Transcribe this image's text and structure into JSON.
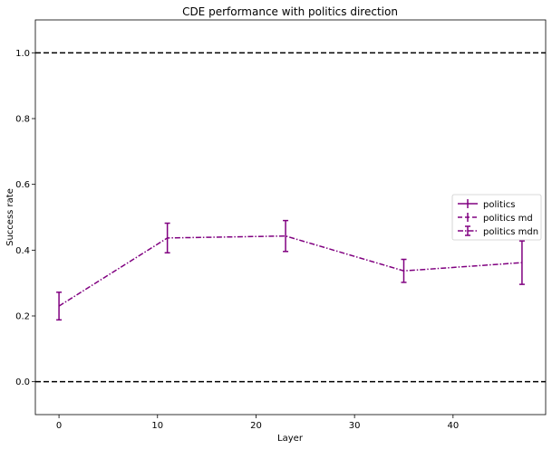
{
  "chart_data": {
    "type": "line",
    "title": "CDE performance with politics direction",
    "xlabel": "Layer",
    "ylabel": "Success rate",
    "xlim": [
      -2.4,
      49.4
    ],
    "ylim": [
      -0.1,
      1.1
    ],
    "xticks": [
      0,
      10,
      20,
      30,
      40
    ],
    "yticks": [
      0.0,
      0.2,
      0.4,
      0.6,
      0.8,
      1.0
    ],
    "xtick_labels": [
      "0",
      "10",
      "20",
      "30",
      "40"
    ],
    "ytick_labels": [
      "0.0",
      "0.2",
      "0.4",
      "0.6",
      "0.8",
      "1.0"
    ],
    "grid": false,
    "legend_position": "center-right",
    "color": "#800080",
    "reference_lines": [
      {
        "y": 1.0,
        "style": "dashed",
        "color": "#000000"
      },
      {
        "y": 0.0,
        "style": "dashed",
        "color": "#000000"
      }
    ],
    "series": [
      {
        "name": "politics",
        "linestyle": "solid",
        "x": [],
        "y": [],
        "err": []
      },
      {
        "name": "politics md",
        "linestyle": "dashed",
        "x": [],
        "y": [],
        "err": []
      },
      {
        "name": "politics mdn",
        "linestyle": "dashdot",
        "x": [
          0,
          11,
          23,
          35,
          47
        ],
        "y": [
          0.23,
          0.437,
          0.443,
          0.337,
          0.362
        ],
        "err": [
          0.042,
          0.045,
          0.047,
          0.035,
          0.066
        ]
      }
    ]
  }
}
